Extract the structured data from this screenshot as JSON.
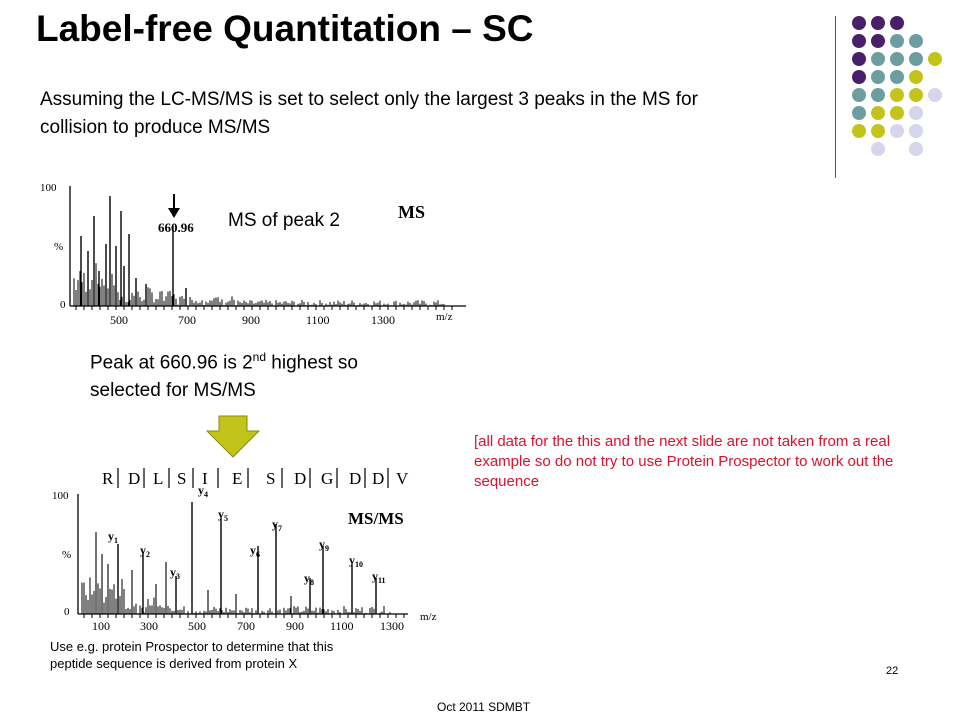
{
  "title": "Label-free Quantitation – SC",
  "intro": "Assuming the LC-MS/MS is set to select only the largest 3 peaks in the MS for collision to produce MS/MS",
  "ms_label": "MS of peak 2",
  "peak_note": {
    "before": "Peak at 660.96 is 2",
    "sup": "nd",
    "after": " highest so selected for MS/MS"
  },
  "disclaimer": "[all data for the this and the next slide are not taken from a real example so do not try to use Protein Prospector to work out the sequence",
  "hint": "Use e.g. protein Prospector to determine that this peptide sequence is derived from protein X",
  "page_number": "22",
  "footer": "Oct 2011 SDMBT",
  "colors": {
    "purple": "#4a1f6a",
    "teal": "#6c9ea0",
    "olive": "#c3c41a",
    "lavender": "#d6d6ea",
    "red": "#e0102b",
    "arrow": "#c3c41a"
  },
  "ms_spectrum": {
    "title": "MS",
    "peak_label": "660.96",
    "y_labels": [
      "100",
      "%",
      "0"
    ],
    "x_labels": [
      "500",
      "700",
      "900",
      "1100",
      "1300"
    ],
    "x_unit": "m/z"
  },
  "msms_spectrum": {
    "title": "MS/MS",
    "sequence": [
      "R",
      "D",
      "L",
      "S",
      "I",
      "E",
      "S",
      "D",
      "G",
      "D",
      "D",
      "V"
    ],
    "ions": [
      {
        "base": "y",
        "sub": "1"
      },
      {
        "base": "y",
        "sub": "2"
      },
      {
        "base": "y",
        "sub": "3"
      },
      {
        "base": "y",
        "sub": "4"
      },
      {
        "base": "y",
        "sub": "5"
      },
      {
        "base": "y",
        "sub": "6"
      },
      {
        "base": "y",
        "sub": "7"
      },
      {
        "base": "y",
        "sub": "8"
      },
      {
        "base": "y",
        "sub": "9"
      },
      {
        "base": "y",
        "sub": "10"
      },
      {
        "base": "y",
        "sub": "11"
      }
    ],
    "y_labels": [
      "100",
      "%",
      "0"
    ],
    "x_labels": [
      "100",
      "300",
      "500",
      "700",
      "900",
      "1100",
      "1300"
    ],
    "x_unit": "m/z"
  }
}
